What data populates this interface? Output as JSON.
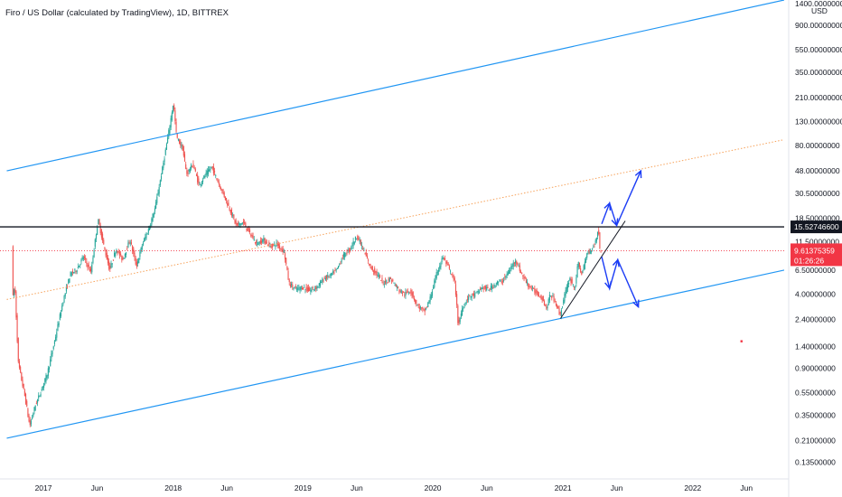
{
  "title": "Firo / US Dollar (calculated by TradingView), 1D, BITTREX",
  "currency_label": "USD",
  "chart_data": {
    "type": "candlestick",
    "title": "Firo / US Dollar (calculated by TradingView), 1D, BITTREX",
    "scale": "log",
    "ylim": [
      0.11,
      1500
    ],
    "xlim": [
      "2016-09-01",
      "2022-09-15"
    ],
    "y_tick_labels": [
      "1400.00000000",
      "900.00000000",
      "550.00000000",
      "350.00000000",
      "210.00000000",
      "130.00000000",
      "80.00000000",
      "48.00000000",
      "30.50000000",
      "18.50000000",
      "11.50000000",
      "6.50000000",
      "4.00000000",
      "2.40000000",
      "1.40000000",
      "0.90000000",
      "0.55000000",
      "0.35000000",
      "0.21000000",
      "0.13500000"
    ],
    "x_tick_labels": [
      {
        "label": "2017",
        "date": "2017-01-01"
      },
      {
        "label": "Jun",
        "date": "2017-06-01"
      },
      {
        "label": "2018",
        "date": "2018-01-01"
      },
      {
        "label": "Jun",
        "date": "2018-06-01"
      },
      {
        "label": "2019",
        "date": "2019-01-01"
      },
      {
        "label": "Jun",
        "date": "2019-06-01"
      },
      {
        "label": "2020",
        "date": "2020-01-01"
      },
      {
        "label": "Jun",
        "date": "2020-06-01"
      },
      {
        "label": "2021",
        "date": "2021-01-01"
      },
      {
        "label": "Jun",
        "date": "2021-06-01"
      },
      {
        "label": "2022",
        "date": "2022-01-01"
      },
      {
        "label": "Jun",
        "date": "2022-06-01"
      }
    ],
    "price_path": [
      {
        "date": "2016-10-06",
        "price": 11.0
      },
      {
        "date": "2016-10-09",
        "price": 3.8
      },
      {
        "date": "2016-10-14",
        "price": 4.8
      },
      {
        "date": "2016-10-24",
        "price": 1.0
      },
      {
        "date": "2016-11-13",
        "price": 0.48
      },
      {
        "date": "2016-11-25",
        "price": 0.28
      },
      {
        "date": "2016-12-10",
        "price": 0.42
      },
      {
        "date": "2016-12-25",
        "price": 0.55
      },
      {
        "date": "2017-01-13",
        "price": 0.8
      },
      {
        "date": "2017-02-04",
        "price": 1.6
      },
      {
        "date": "2017-02-26",
        "price": 3.4
      },
      {
        "date": "2017-03-19",
        "price": 6.0
      },
      {
        "date": "2017-04-05",
        "price": 6.5
      },
      {
        "date": "2017-04-25",
        "price": 8.5
      },
      {
        "date": "2017-05-16",
        "price": 6.2
      },
      {
        "date": "2017-06-05",
        "price": 18.0
      },
      {
        "date": "2017-06-20",
        "price": 11.0
      },
      {
        "date": "2017-07-08",
        "price": 6.5
      },
      {
        "date": "2017-07-26",
        "price": 10.0
      },
      {
        "date": "2017-08-13",
        "price": 8.0
      },
      {
        "date": "2017-09-03",
        "price": 12.0
      },
      {
        "date": "2017-09-21",
        "price": 7.0
      },
      {
        "date": "2017-10-08",
        "price": 11.0
      },
      {
        "date": "2017-10-26",
        "price": 15.0
      },
      {
        "date": "2017-11-13",
        "price": 23.0
      },
      {
        "date": "2017-12-03",
        "price": 50.0
      },
      {
        "date": "2017-12-21",
        "price": 105.0
      },
      {
        "date": "2018-01-03",
        "price": 190.0
      },
      {
        "date": "2018-01-12",
        "price": 95.0
      },
      {
        "date": "2018-01-29",
        "price": 75.0
      },
      {
        "date": "2018-02-09",
        "price": 45.0
      },
      {
        "date": "2018-02-27",
        "price": 55.0
      },
      {
        "date": "2018-03-16",
        "price": 36.0
      },
      {
        "date": "2018-04-03",
        "price": 44.0
      },
      {
        "date": "2018-04-21",
        "price": 52.0
      },
      {
        "date": "2018-05-06",
        "price": 40.0
      },
      {
        "date": "2018-05-24",
        "price": 30.0
      },
      {
        "date": "2018-06-11",
        "price": 22.0
      },
      {
        "date": "2018-06-29",
        "price": 16.0
      },
      {
        "date": "2018-07-18",
        "price": 17.0
      },
      {
        "date": "2018-08-07",
        "price": 13.5
      },
      {
        "date": "2018-08-25",
        "price": 11.0
      },
      {
        "date": "2018-09-13",
        "price": 12.0
      },
      {
        "date": "2018-10-02",
        "price": 10.5
      },
      {
        "date": "2018-10-20",
        "price": 11.0
      },
      {
        "date": "2018-11-10",
        "price": 9.5
      },
      {
        "date": "2018-11-24",
        "price": 5.0
      },
      {
        "date": "2018-12-12",
        "price": 4.4
      },
      {
        "date": "2019-01-01",
        "price": 4.6
      },
      {
        "date": "2019-01-21",
        "price": 4.3
      },
      {
        "date": "2019-02-10",
        "price": 4.6
      },
      {
        "date": "2019-03-03",
        "price": 5.5
      },
      {
        "date": "2019-03-20",
        "price": 5.8
      },
      {
        "date": "2019-04-07",
        "price": 6.5
      },
      {
        "date": "2019-04-24",
        "price": 8.5
      },
      {
        "date": "2019-05-15",
        "price": 10.0
      },
      {
        "date": "2019-06-03",
        "price": 13.0
      },
      {
        "date": "2019-06-20",
        "price": 10.0
      },
      {
        "date": "2019-07-10",
        "price": 7.0
      },
      {
        "date": "2019-07-29",
        "price": 6.0
      },
      {
        "date": "2019-08-16",
        "price": 5.0
      },
      {
        "date": "2019-09-05",
        "price": 5.5
      },
      {
        "date": "2019-09-25",
        "price": 4.5
      },
      {
        "date": "2019-10-14",
        "price": 4.0
      },
      {
        "date": "2019-11-01",
        "price": 4.3
      },
      {
        "date": "2019-11-19",
        "price": 3.2
      },
      {
        "date": "2019-12-10",
        "price": 2.8
      },
      {
        "date": "2019-12-25",
        "price": 3.6
      },
      {
        "date": "2020-01-13",
        "price": 6.0
      },
      {
        "date": "2020-01-31",
        "price": 8.5
      },
      {
        "date": "2020-02-14",
        "price": 7.0
      },
      {
        "date": "2020-03-05",
        "price": 5.0
      },
      {
        "date": "2020-03-14",
        "price": 2.1
      },
      {
        "date": "2020-03-25",
        "price": 3.0
      },
      {
        "date": "2020-04-12",
        "price": 3.8
      },
      {
        "date": "2020-05-02",
        "price": 4.0
      },
      {
        "date": "2020-05-21",
        "price": 4.6
      },
      {
        "date": "2020-06-08",
        "price": 4.4
      },
      {
        "date": "2020-06-28",
        "price": 5.0
      },
      {
        "date": "2020-07-16",
        "price": 5.2
      },
      {
        "date": "2020-08-06",
        "price": 6.5
      },
      {
        "date": "2020-08-22",
        "price": 8.0
      },
      {
        "date": "2020-09-08",
        "price": 6.0
      },
      {
        "date": "2020-09-27",
        "price": 4.8
      },
      {
        "date": "2020-10-16",
        "price": 4.2
      },
      {
        "date": "2020-11-03",
        "price": 3.8
      },
      {
        "date": "2020-11-17",
        "price": 3.0
      },
      {
        "date": "2020-11-28",
        "price": 4.0
      },
      {
        "date": "2020-12-13",
        "price": 3.4
      },
      {
        "date": "2020-12-25",
        "price": 2.6
      },
      {
        "date": "2021-01-06",
        "price": 3.8
      },
      {
        "date": "2021-01-21",
        "price": 5.5
      },
      {
        "date": "2021-02-05",
        "price": 4.5
      },
      {
        "date": "2021-02-14",
        "price": 7.5
      },
      {
        "date": "2021-02-25",
        "price": 6.0
      },
      {
        "date": "2021-03-11",
        "price": 9.0
      },
      {
        "date": "2021-03-25",
        "price": 10.0
      },
      {
        "date": "2021-04-06",
        "price": 12.0
      },
      {
        "date": "2021-04-12",
        "price": 15.5
      },
      {
        "date": "2021-04-16",
        "price": 9.8
      }
    ],
    "drawings": {
      "channel_upper": {
        "color": "#2196f3",
        "points": [
          {
            "date": "2016-09-20",
            "price": 48.0
          },
          {
            "date": "2022-09-15",
            "price": 1500.0
          }
        ]
      },
      "channel_lower": {
        "color": "#2196f3",
        "points": [
          {
            "date": "2016-09-20",
            "price": 0.22
          },
          {
            "date": "2022-09-15",
            "price": 6.5
          }
        ]
      },
      "channel_mid": {
        "color": "#f7a35c",
        "style": "dotted",
        "points": [
          {
            "date": "2016-09-20",
            "price": 3.6
          },
          {
            "date": "2022-09-15",
            "price": 90.0
          }
        ]
      },
      "support_trend": {
        "color": "#131722",
        "points": [
          {
            "date": "2020-12-25",
            "price": 2.45
          },
          {
            "date": "2021-06-25",
            "price": 17.5
          }
        ]
      },
      "resistance_level": {
        "price": 15.527466,
        "color": "#131722",
        "label": "15.52746600"
      },
      "current_price": {
        "price": 9.61375359,
        "color": "#f23645",
        "label": "9.61375359",
        "countdown": "01:26:26"
      },
      "projection_bullish": {
        "color": "#1b3cf5",
        "points": [
          {
            "date": "2021-04-20",
            "price": 16.5
          },
          {
            "date": "2021-05-12",
            "price": 25.0
          },
          {
            "date": "2021-06-01",
            "price": 16.0
          },
          {
            "date": "2021-08-08",
            "price": 48.0
          }
        ]
      },
      "projection_bearish": {
        "color": "#1b3cf5",
        "points": [
          {
            "date": "2021-04-20",
            "price": 8.5
          },
          {
            "date": "2021-05-12",
            "price": 4.5
          },
          {
            "date": "2021-06-04",
            "price": 8.0
          },
          {
            "date": "2021-08-01",
            "price": 3.1
          }
        ]
      },
      "marker": {
        "date": "2022-05-18",
        "price": 1.55,
        "color": "#f23645"
      }
    }
  }
}
